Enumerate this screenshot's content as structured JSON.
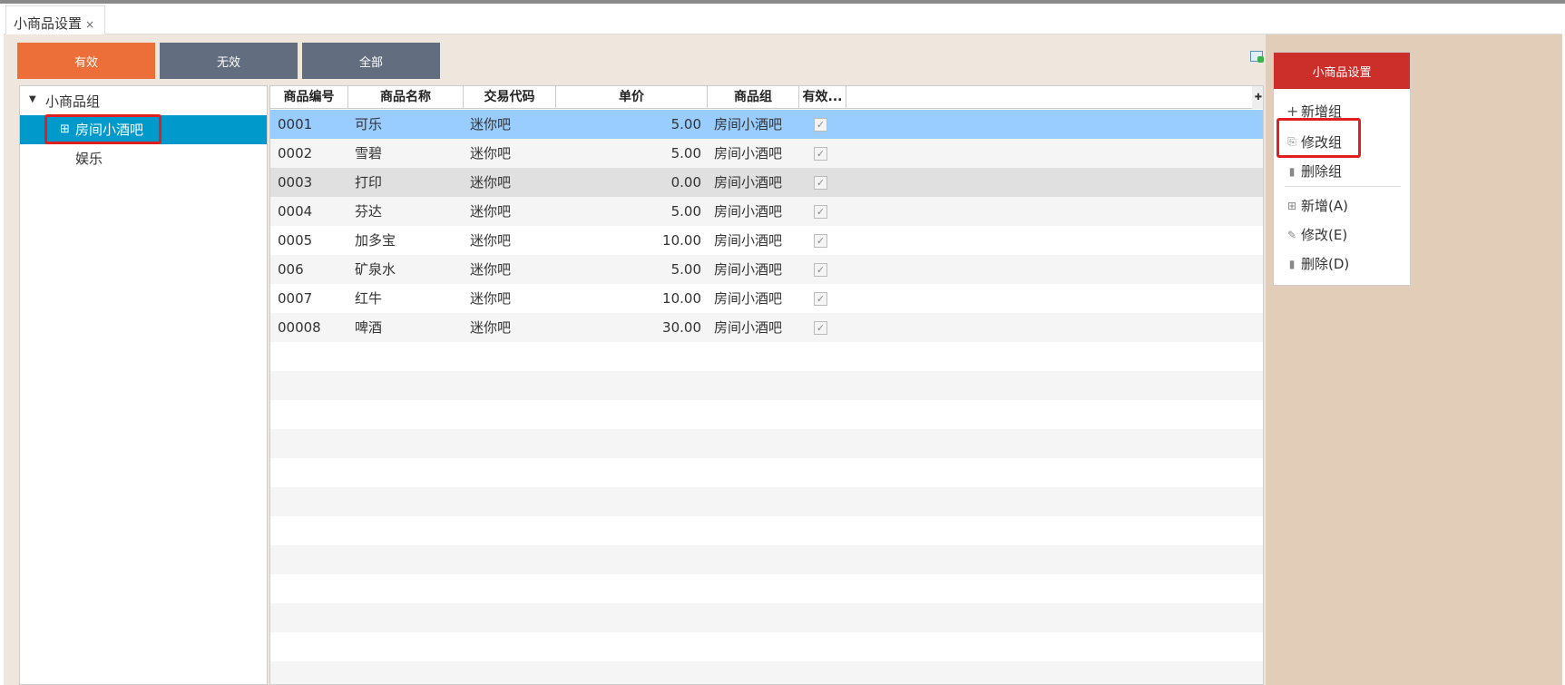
{
  "tab": {
    "title": "小商品设置",
    "close": "×"
  },
  "filters": [
    {
      "label": "有效",
      "color": "#ec6f39"
    },
    {
      "label": "无效",
      "color": "#626e7f"
    },
    {
      "label": "全部",
      "color": "#626e7f"
    }
  ],
  "tree": {
    "root": "小商品组",
    "items": [
      {
        "label": "房间小酒吧",
        "selected": true
      },
      {
        "label": "娱乐",
        "selected": false
      }
    ]
  },
  "grid": {
    "columns": [
      "商品编号",
      "商品名称",
      "交易代码",
      "单价",
      "商品组",
      "有效..."
    ],
    "rows": [
      [
        "0001",
        "可乐",
        "迷你吧",
        "5.00",
        "房间小酒吧",
        true
      ],
      [
        "0002",
        "雪碧",
        "迷你吧",
        "5.00",
        "房间小酒吧",
        true
      ],
      [
        "0003",
        "打印",
        "迷你吧",
        "0.00",
        "房间小酒吧",
        true
      ],
      [
        "0004",
        "芬达",
        "迷你吧",
        "5.00",
        "房间小酒吧",
        true
      ],
      [
        "0005",
        "加多宝",
        "迷你吧",
        "10.00",
        "房间小酒吧",
        true
      ],
      [
        "006",
        "矿泉水",
        "迷你吧",
        "5.00",
        "房间小酒吧",
        true
      ],
      [
        "0007",
        "红牛",
        "迷你吧",
        "10.00",
        "房间小酒吧",
        true
      ],
      [
        "00008",
        "啤酒",
        "迷你吧",
        "30.00",
        "房间小酒吧",
        true
      ]
    ]
  },
  "panel": {
    "title": "小商品设置",
    "items": [
      {
        "label": "新增组",
        "icon": "plus-icon"
      },
      {
        "label": "修改组",
        "icon": "edit-group-icon"
      },
      {
        "label": "删除组",
        "icon": "trash-icon"
      },
      {
        "label": "新增(A)",
        "icon": "add-box-icon"
      },
      {
        "label": "修改(E)",
        "icon": "edit-icon"
      },
      {
        "label": "删除(D)",
        "icon": "trash-icon"
      }
    ]
  },
  "colors": {
    "selected_tree": "#0099cc",
    "selected_row": "#99ccff",
    "panel_header": "#cc2f2a",
    "highlight": "#e02020"
  }
}
